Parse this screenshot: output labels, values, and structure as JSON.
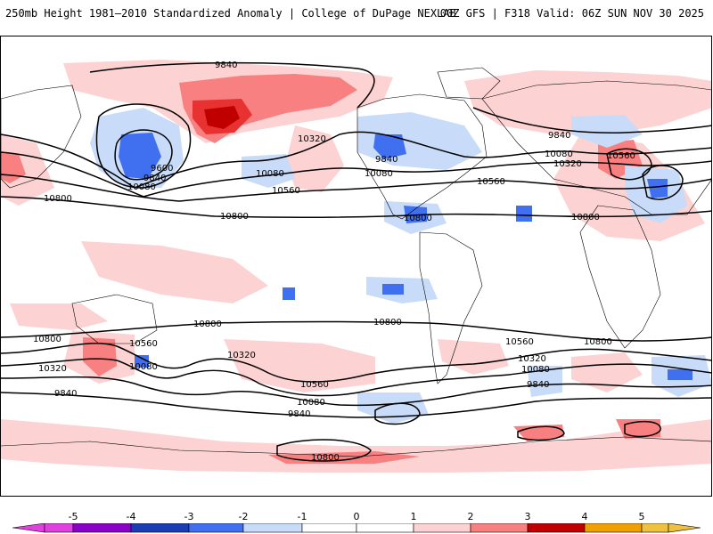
{
  "header": {
    "title": "250mb Height 1981–2010 Standardized Anomaly | College of DuPage NEXLAB",
    "run_info": "00Z GFS | F318 Valid: 06Z SUN NOV 30 2025"
  },
  "colors": {
    "m5": "#e040e0",
    "m4": "#8a00c8",
    "m3": "#1c3cb4",
    "m2": "#4070f0",
    "m1": "#c8dcfa",
    "p1": "#fcd2d2",
    "p2": "#f88080",
    "p3": "#e83232",
    "p4": "#c00000",
    "p5": "#f0a000",
    "contour": "#000000",
    "coast": "#000000"
  },
  "colorbar": {
    "labels": [
      "-5",
      "-4",
      "-3",
      "-2",
      "-1",
      "0",
      "1",
      "2",
      "3",
      "4",
      "5"
    ]
  },
  "contour_labels": [
    "9840",
    "9600",
    "9840",
    "10080",
    "10800",
    "10800",
    "10080",
    "10560",
    "10320",
    "9840",
    "10080",
    "10560",
    "10800",
    "9840",
    "10080",
    "10320",
    "10560",
    "10800",
    "10800",
    "10800",
    "10560",
    "10080",
    "10320",
    "10320",
    "10560",
    "10080",
    "9840",
    "10800",
    "10560",
    "10320",
    "10080",
    "9840",
    "9840",
    "10800",
    "10800"
  ]
}
